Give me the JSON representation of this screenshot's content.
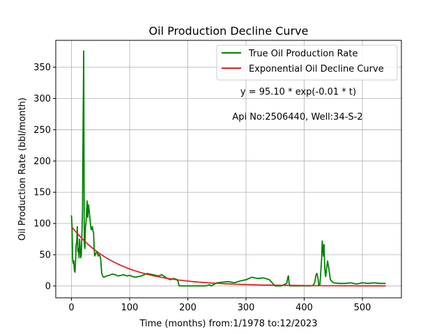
{
  "chart_data": {
    "type": "line",
    "title": "Oil Production Decline Curve",
    "xlabel": "Time (months) from:1/1978 to:12/2023",
    "ylabel": "Oil Production Rate (bbl/month)",
    "xlim": [
      -27,
      567
    ],
    "ylim": [
      -19,
      393
    ],
    "xticks": [
      0,
      100,
      200,
      300,
      400,
      500
    ],
    "yticks": [
      0,
      50,
      100,
      150,
      200,
      250,
      300,
      350
    ],
    "grid": true,
    "legend_position": "top-right",
    "annotations": [
      "y = 95.10 * exp(-0.01 * t)",
      "Api No:2506440, Well:34-S-2"
    ],
    "series": [
      {
        "name": "True Oil Production Rate",
        "color": "#008000",
        "x": [
          0,
          1,
          2,
          3,
          4,
          5,
          6,
          7,
          8,
          9,
          10,
          11,
          12,
          13,
          14,
          15,
          16,
          17,
          18,
          19,
          20,
          21,
          22,
          23,
          24,
          25,
          26,
          27,
          28,
          29,
          30,
          31,
          32,
          33,
          34,
          35,
          36,
          37,
          38,
          39,
          40,
          42,
          44,
          46,
          48,
          50,
          52,
          54,
          56,
          60,
          65,
          70,
          75,
          80,
          85,
          90,
          95,
          100,
          105,
          110,
          115,
          120,
          125,
          130,
          135,
          140,
          145,
          150,
          155,
          160,
          165,
          170,
          175,
          180,
          183,
          185,
          190,
          200,
          210,
          220,
          230,
          235,
          237,
          240,
          250,
          260,
          270,
          280,
          290,
          300,
          310,
          320,
          330,
          340,
          348,
          350,
          360,
          370,
          372,
          373,
          374,
          375,
          376,
          380,
          390,
          400,
          410,
          415,
          418,
          420,
          422,
          424,
          425,
          427,
          430,
          431,
          432,
          433,
          434,
          435,
          436,
          437,
          438,
          440,
          442,
          445,
          450,
          460,
          470,
          480,
          490,
          500,
          510,
          520,
          530,
          540
        ],
        "y": [
          113,
          95,
          42,
          36,
          40,
          25,
          22,
          40,
          65,
          70,
          95,
          55,
          60,
          45,
          75,
          60,
          45,
          50,
          85,
          120,
          250,
          376,
          70,
          60,
          95,
          100,
          120,
          136,
          110,
          130,
          125,
          115,
          105,
          95,
          90,
          92,
          95,
          88,
          85,
          60,
          48,
          52,
          55,
          48,
          50,
          45,
          20,
          15,
          14,
          16,
          17,
          19,
          18,
          16,
          17,
          18,
          16,
          17,
          15,
          14,
          15,
          16,
          18,
          20,
          19,
          18,
          17,
          16,
          18,
          15,
          12,
          10,
          12,
          11,
          8,
          0,
          0,
          0,
          0,
          0,
          0,
          1,
          2,
          0,
          5,
          6,
          7,
          5,
          8,
          10,
          14,
          12,
          13,
          10,
          2,
          0,
          0,
          4,
          15,
          16,
          4,
          2,
          0,
          0,
          0,
          0,
          0,
          1,
          5,
          17,
          20,
          10,
          0,
          2,
          45,
          72,
          60,
          48,
          66,
          35,
          20,
          15,
          25,
          40,
          30,
          10,
          5,
          4,
          4,
          5,
          3,
          5,
          4,
          5,
          4,
          4
        ]
      },
      {
        "name": "Exponential Oil Decline Curve",
        "color": "#d62728",
        "a": 95.1,
        "b": 0.0125
      }
    ]
  }
}
